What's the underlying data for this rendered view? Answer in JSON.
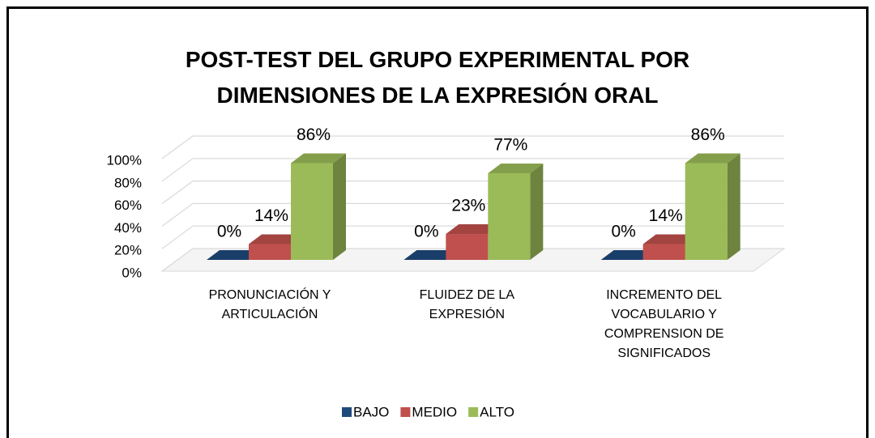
{
  "chart_data": {
    "type": "bar3d",
    "title": "POST-TEST DEL GRUPO EXPERIMENTAL POR DIMENSIONES DE LA EXPRESIÓN ORAL",
    "categories": [
      "PRONUNCIACIÓN Y ARTICULACIÓN",
      "FLUIDEZ DE LA EXPRESIÓN",
      "INCREMENTO DEL VOCABULARIO Y COMPRENSION DE SIGNIFICADOS"
    ],
    "series": [
      {
        "name": "BAJO",
        "color": "#1f497d",
        "values": [
          0,
          0,
          0
        ],
        "value_labels": [
          "0%",
          "0%",
          "0%"
        ]
      },
      {
        "name": "MEDIO",
        "color": "#c0504d",
        "values": [
          14,
          23,
          14
        ],
        "value_labels": [
          "14%",
          "23%",
          "14%"
        ]
      },
      {
        "name": "ALTO",
        "color": "#9bbb59",
        "values": [
          86,
          77,
          86
        ],
        "value_labels": [
          "86%",
          "77%",
          "86%"
        ]
      }
    ],
    "ylim": [
      0,
      100
    ],
    "yticks": [
      {
        "value": 0,
        "label": "0%"
      },
      {
        "value": 20,
        "label": "20%"
      },
      {
        "value": 40,
        "label": "40%"
      },
      {
        "value": 60,
        "label": "60%"
      },
      {
        "value": 80,
        "label": "80%"
      },
      {
        "value": 100,
        "label": "100%"
      }
    ],
    "grid": true,
    "legend": "bottom"
  }
}
